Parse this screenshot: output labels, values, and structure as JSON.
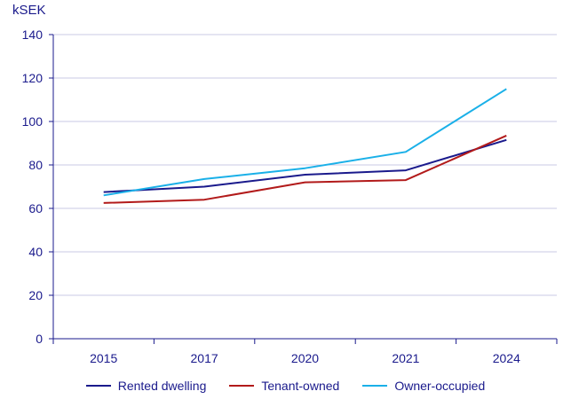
{
  "chart_data": {
    "type": "line",
    "ylabel": "kSEK",
    "categories": [
      "2015",
      "2017",
      "2020",
      "2021",
      "2024"
    ],
    "ylim": [
      0,
      140
    ],
    "yticks": [
      0,
      20,
      40,
      60,
      80,
      100,
      120,
      140
    ],
    "grid": true,
    "legend_position": "bottom",
    "series": [
      {
        "name": "Rented dwelling",
        "color": "#1a1a8c",
        "values": [
          67.5,
          70,
          75.5,
          77.5,
          91.5
        ]
      },
      {
        "name": "Tenant-owned",
        "color": "#b21a1a",
        "values": [
          62.5,
          64,
          72,
          73,
          93.5
        ]
      },
      {
        "name": "Owner-occupied",
        "color": "#1ab0e8",
        "values": [
          66,
          73.5,
          78.5,
          86,
          115
        ]
      }
    ]
  }
}
